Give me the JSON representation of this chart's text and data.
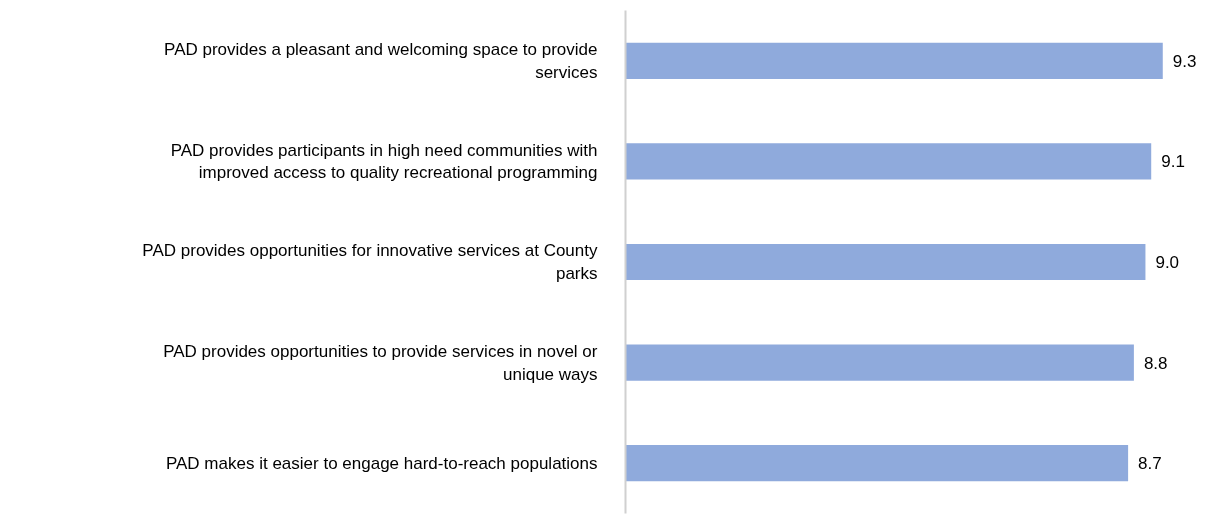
{
  "chart_data": {
    "type": "bar",
    "orientation": "horizontal",
    "categories": [
      "PAD provides a pleasant and welcoming space to provide services",
      "PAD provides participants in high need communities with improved access to quality recreational programming",
      "PAD provides opportunities for innovative services at County parks",
      "PAD provides opportunities to provide services in novel or unique ways",
      "PAD makes it easier to engage hard-to-reach populations"
    ],
    "values": [
      9.3,
      9.1,
      9.0,
      8.8,
      8.7
    ],
    "value_labels": [
      "9.3",
      "9.1",
      "9.0",
      "8.8",
      "8.7"
    ],
    "color": "#8faadc",
    "grid": false
  }
}
